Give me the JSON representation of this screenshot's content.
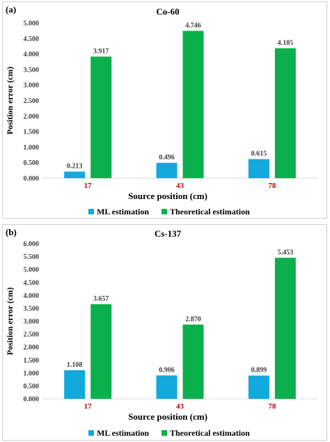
{
  "colors": {
    "ml": "#12a9dc",
    "theoretical": "#0ab04b",
    "category_label": "#c00000",
    "axis_text": "#404040",
    "grid": "#d9d9d9"
  },
  "chart_data": [
    {
      "panel_label": "(a)",
      "type": "bar",
      "title": "Co-60",
      "xlabel": "Source position (cm)",
      "ylabel": "Position error (cm)",
      "categories": [
        "17",
        "43",
        "78"
      ],
      "ylim": [
        0,
        5
      ],
      "yticks": [
        "0.000",
        "0.500",
        "1.000",
        "1.500",
        "2.000",
        "2.500",
        "3.000",
        "3.500",
        "4.000",
        "4.500",
        "5.000"
      ],
      "grid": false,
      "legend": "bottom",
      "series": [
        {
          "name": "ML estimation",
          "values": [
            0.213,
            0.496,
            0.615
          ],
          "labels": [
            "0.213",
            "0.496",
            "0.615"
          ]
        },
        {
          "name": "Theoretical estimation",
          "values": [
            3.917,
            4.746,
            4.185
          ],
          "labels": [
            "3.917",
            "4.746",
            "4.185"
          ]
        }
      ]
    },
    {
      "panel_label": "(b)",
      "type": "bar",
      "title": "Cs-137",
      "xlabel": "Source position (cm)",
      "ylabel": "Position error (cm)",
      "categories": [
        "17",
        "43",
        "78"
      ],
      "ylim": [
        0,
        6
      ],
      "yticks": [
        "0.000",
        "0.500",
        "1.000",
        "1.500",
        "2.000",
        "2.500",
        "3.000",
        "3.500",
        "4.000",
        "4.500",
        "5.000",
        "5.500",
        "6.000"
      ],
      "grid": false,
      "legend": "bottom",
      "series": [
        {
          "name": "ML estimation",
          "values": [
            1.108,
            0.906,
            0.899
          ],
          "labels": [
            "1.108",
            "0.906",
            "0.899"
          ]
        },
        {
          "name": "Theoretical estimation",
          "values": [
            3.657,
            2.87,
            5.453
          ],
          "labels": [
            "3.657",
            "2.870",
            "5.453"
          ]
        }
      ]
    }
  ]
}
